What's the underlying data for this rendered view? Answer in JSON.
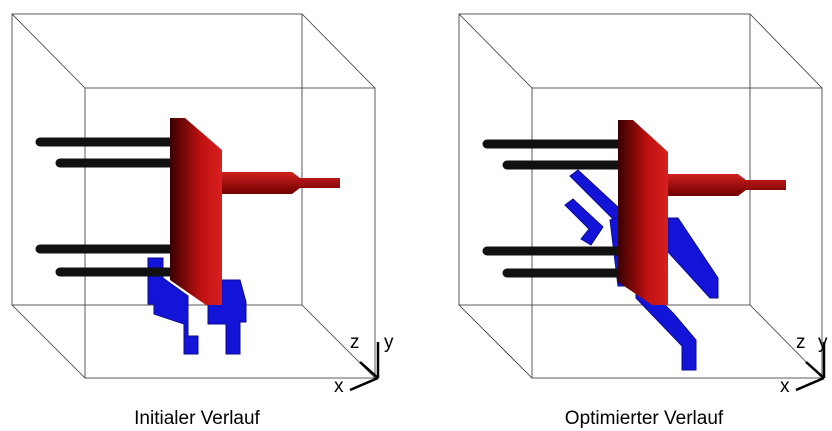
{
  "panels": [
    {
      "caption": "Initialer Verlauf",
      "axes": {
        "x": "x",
        "y": "y",
        "z": "z"
      }
    },
    {
      "caption": "Optimierter Verlauf",
      "axes": {
        "x": "x",
        "y": "y",
        "z": "z"
      }
    }
  ]
}
